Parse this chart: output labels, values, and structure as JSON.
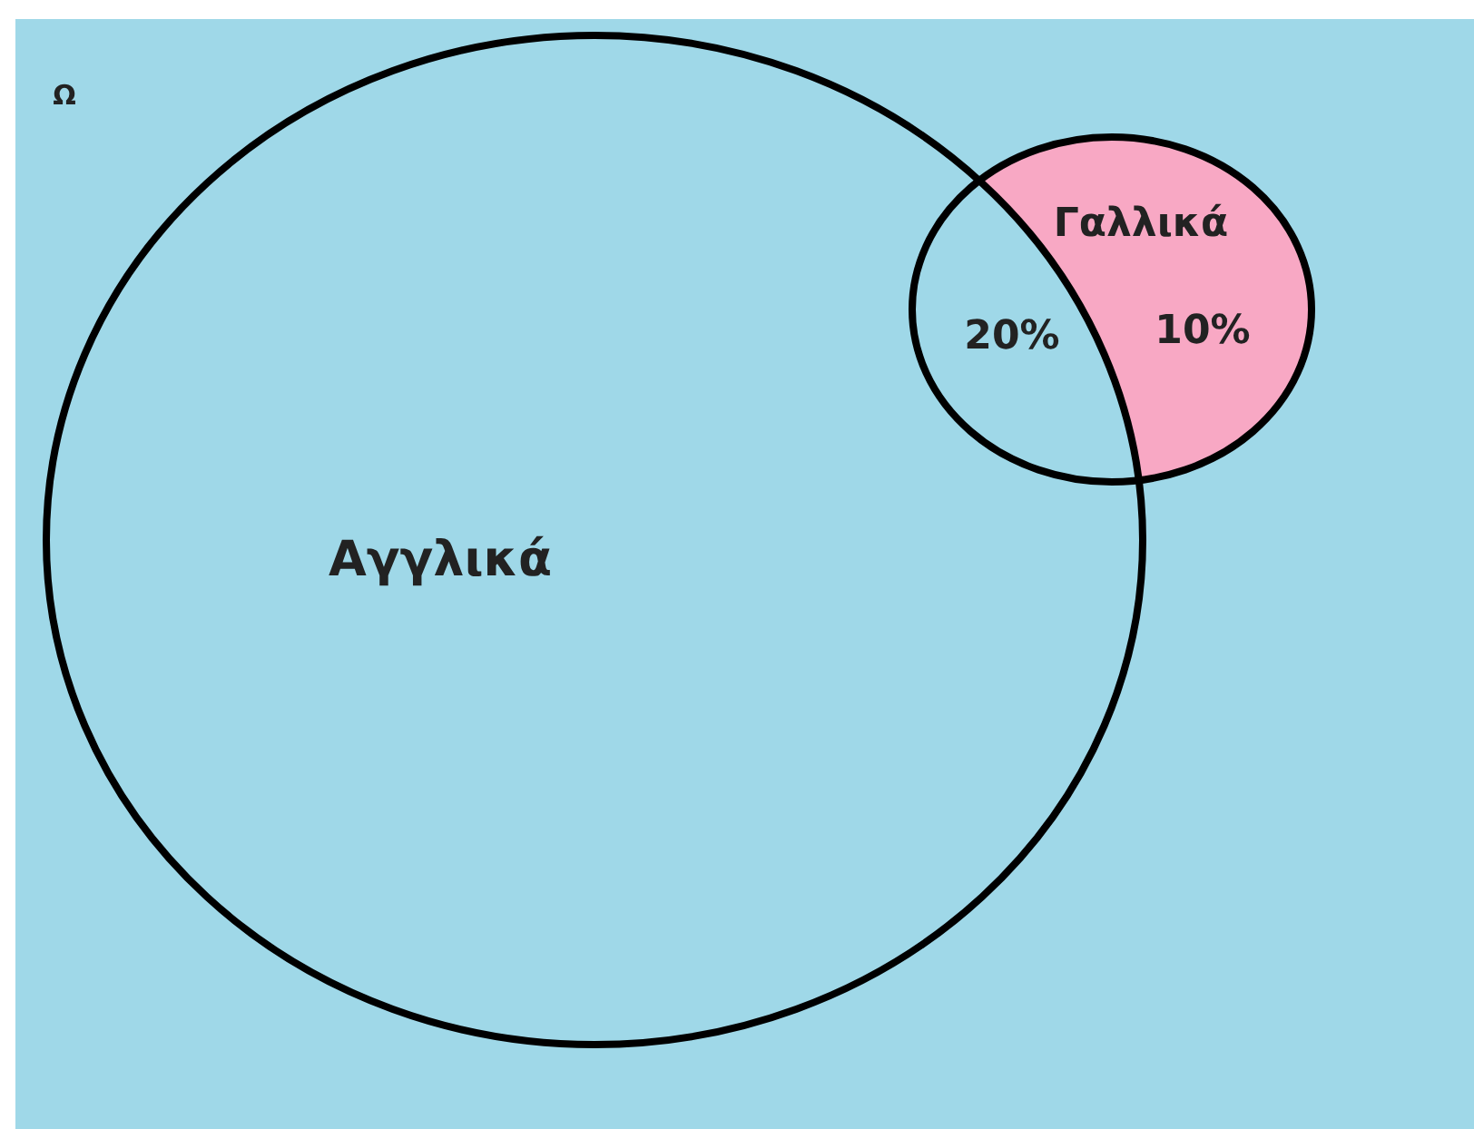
{
  "chart_data": {
    "type": "other",
    "categories": [
      null,
      null
    ],
    "values": [
      20,
      10
    ],
    "value_labels": [
      "20%",
      "10%"
    ],
    "colors": [
      "#9fd8e8",
      "#f8a8c4"
    ],
    "annotations": [
      "Ω",
      "Αγγλικά",
      "Γαλλικά"
    ]
  }
}
